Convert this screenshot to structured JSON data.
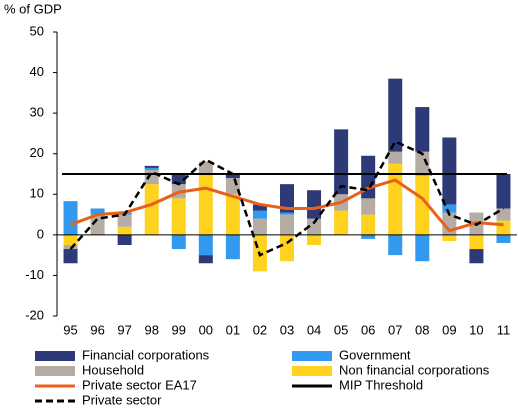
{
  "chart_data": {
    "type": "bar",
    "y_label": "% of GDP",
    "categories": [
      "95",
      "96",
      "97",
      "98",
      "99",
      "00",
      "01",
      "02",
      "03",
      "04",
      "05",
      "06",
      "07",
      "08",
      "09",
      "10",
      "11"
    ],
    "ylim": [
      -20,
      50
    ],
    "yticks": [
      -20,
      -10,
      0,
      10,
      20,
      30,
      40,
      50
    ],
    "series": [
      {
        "name": "Financial corporations",
        "color": "#2e3a78",
        "values": [
          -3.5,
          0,
          -2.5,
          0.5,
          2.5,
          -2,
          1,
          1.5,
          7,
          7,
          16,
          10.5,
          18,
          11,
          16.5,
          -3.5,
          8.5
        ]
      },
      {
        "name": "Government",
        "color": "#3399ee",
        "values": [
          8.3,
          1.5,
          0.5,
          0.5,
          -3.5,
          -5,
          -6,
          2,
          0.5,
          0,
          0,
          -1,
          -5,
          -6.5,
          2,
          0,
          -2
        ]
      },
      {
        "name": "Household",
        "color": "#b5ada3",
        "values": [
          -1,
          5,
          3,
          3.5,
          3.5,
          3,
          4,
          4,
          5,
          4,
          4,
          4,
          3,
          6,
          5.5,
          5.5,
          3
        ]
      },
      {
        "name": "Non financial corporations",
        "color": "#ffd21f",
        "values": [
          -2.5,
          0,
          2,
          12.5,
          9,
          15,
          10,
          -9,
          -6.5,
          -2.5,
          6,
          5,
          17.5,
          14.5,
          -1.5,
          -3.5,
          3.5
        ]
      }
    ],
    "lines": [
      {
        "name": "Private sector EA17",
        "color": "#e8601c",
        "dashed": false,
        "values": [
          2.5,
          5,
          5.5,
          7.5,
          10.5,
          11.5,
          9.5,
          7.5,
          6.5,
          6.5,
          8,
          11.5,
          13.5,
          9,
          1,
          3,
          2.5
        ]
      },
      {
        "name": "Private sector",
        "color": "#000000",
        "dashed": true,
        "values": [
          -3.5,
          4,
          5,
          15.5,
          12.5,
          18.5,
          15,
          -5,
          -2,
          3,
          12,
          11,
          23,
          20,
          5,
          2.5,
          6.5
        ]
      }
    ],
    "threshold": {
      "name": "MIP Threshold",
      "value": 15,
      "color": "#000000"
    }
  }
}
